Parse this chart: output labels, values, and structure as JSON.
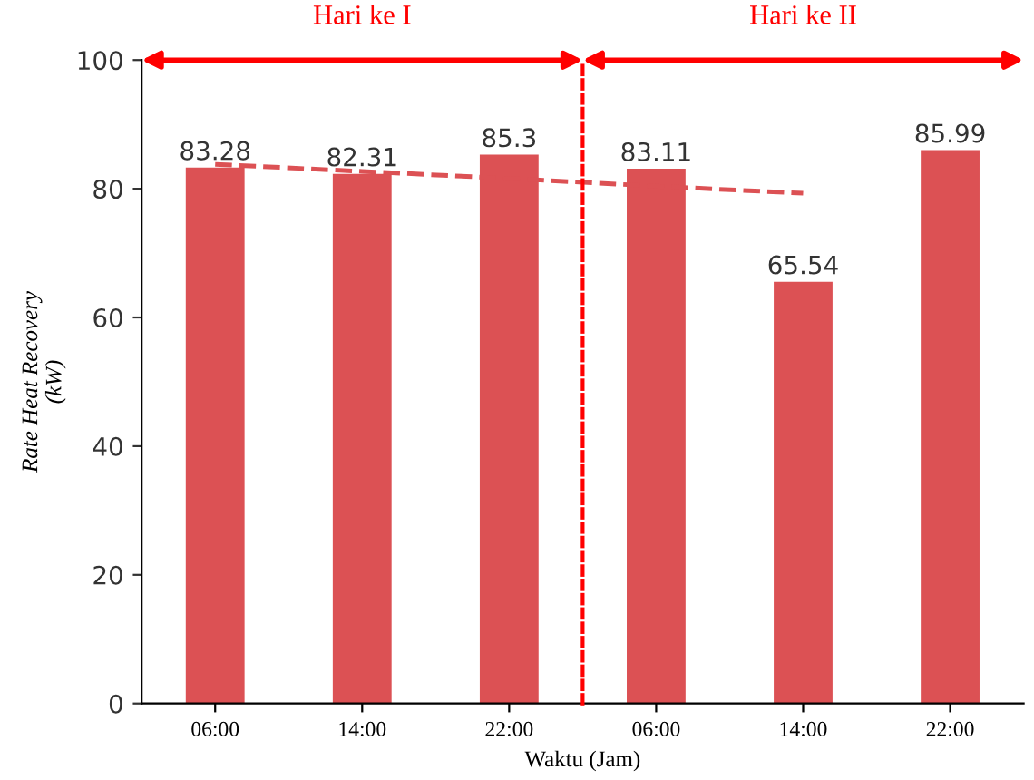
{
  "chart_data": {
    "type": "bar",
    "xlabel": "Waktu (Jam)",
    "ylabel": "Rate Heat Recovery\n(kW)",
    "categories": [
      "06:00",
      "14:00",
      "22:00",
      "06:00",
      "14:00",
      "22:00"
    ],
    "series": [
      {
        "color": "#dc5154",
        "values": [
          83.28,
          82.31,
          85.3,
          83.11,
          65.54,
          85.99
        ],
        "value_labels": [
          "83.28",
          "82.31",
          "85.3",
          "83.11",
          "65.54",
          "85.99"
        ]
      },
      {
        "type": "line",
        "color": "#dc5154",
        "line_style": "dashed",
        "values": [
          83.8,
          82.7,
          81.6,
          80.4,
          79.3,
          null
        ]
      }
    ],
    "ylim": [
      0,
      100
    ],
    "yticks": [
      0,
      20,
      40,
      60,
      80,
      100
    ],
    "grid": false,
    "annotations": [
      "Hari ke I",
      "Hari ke II"
    ]
  }
}
